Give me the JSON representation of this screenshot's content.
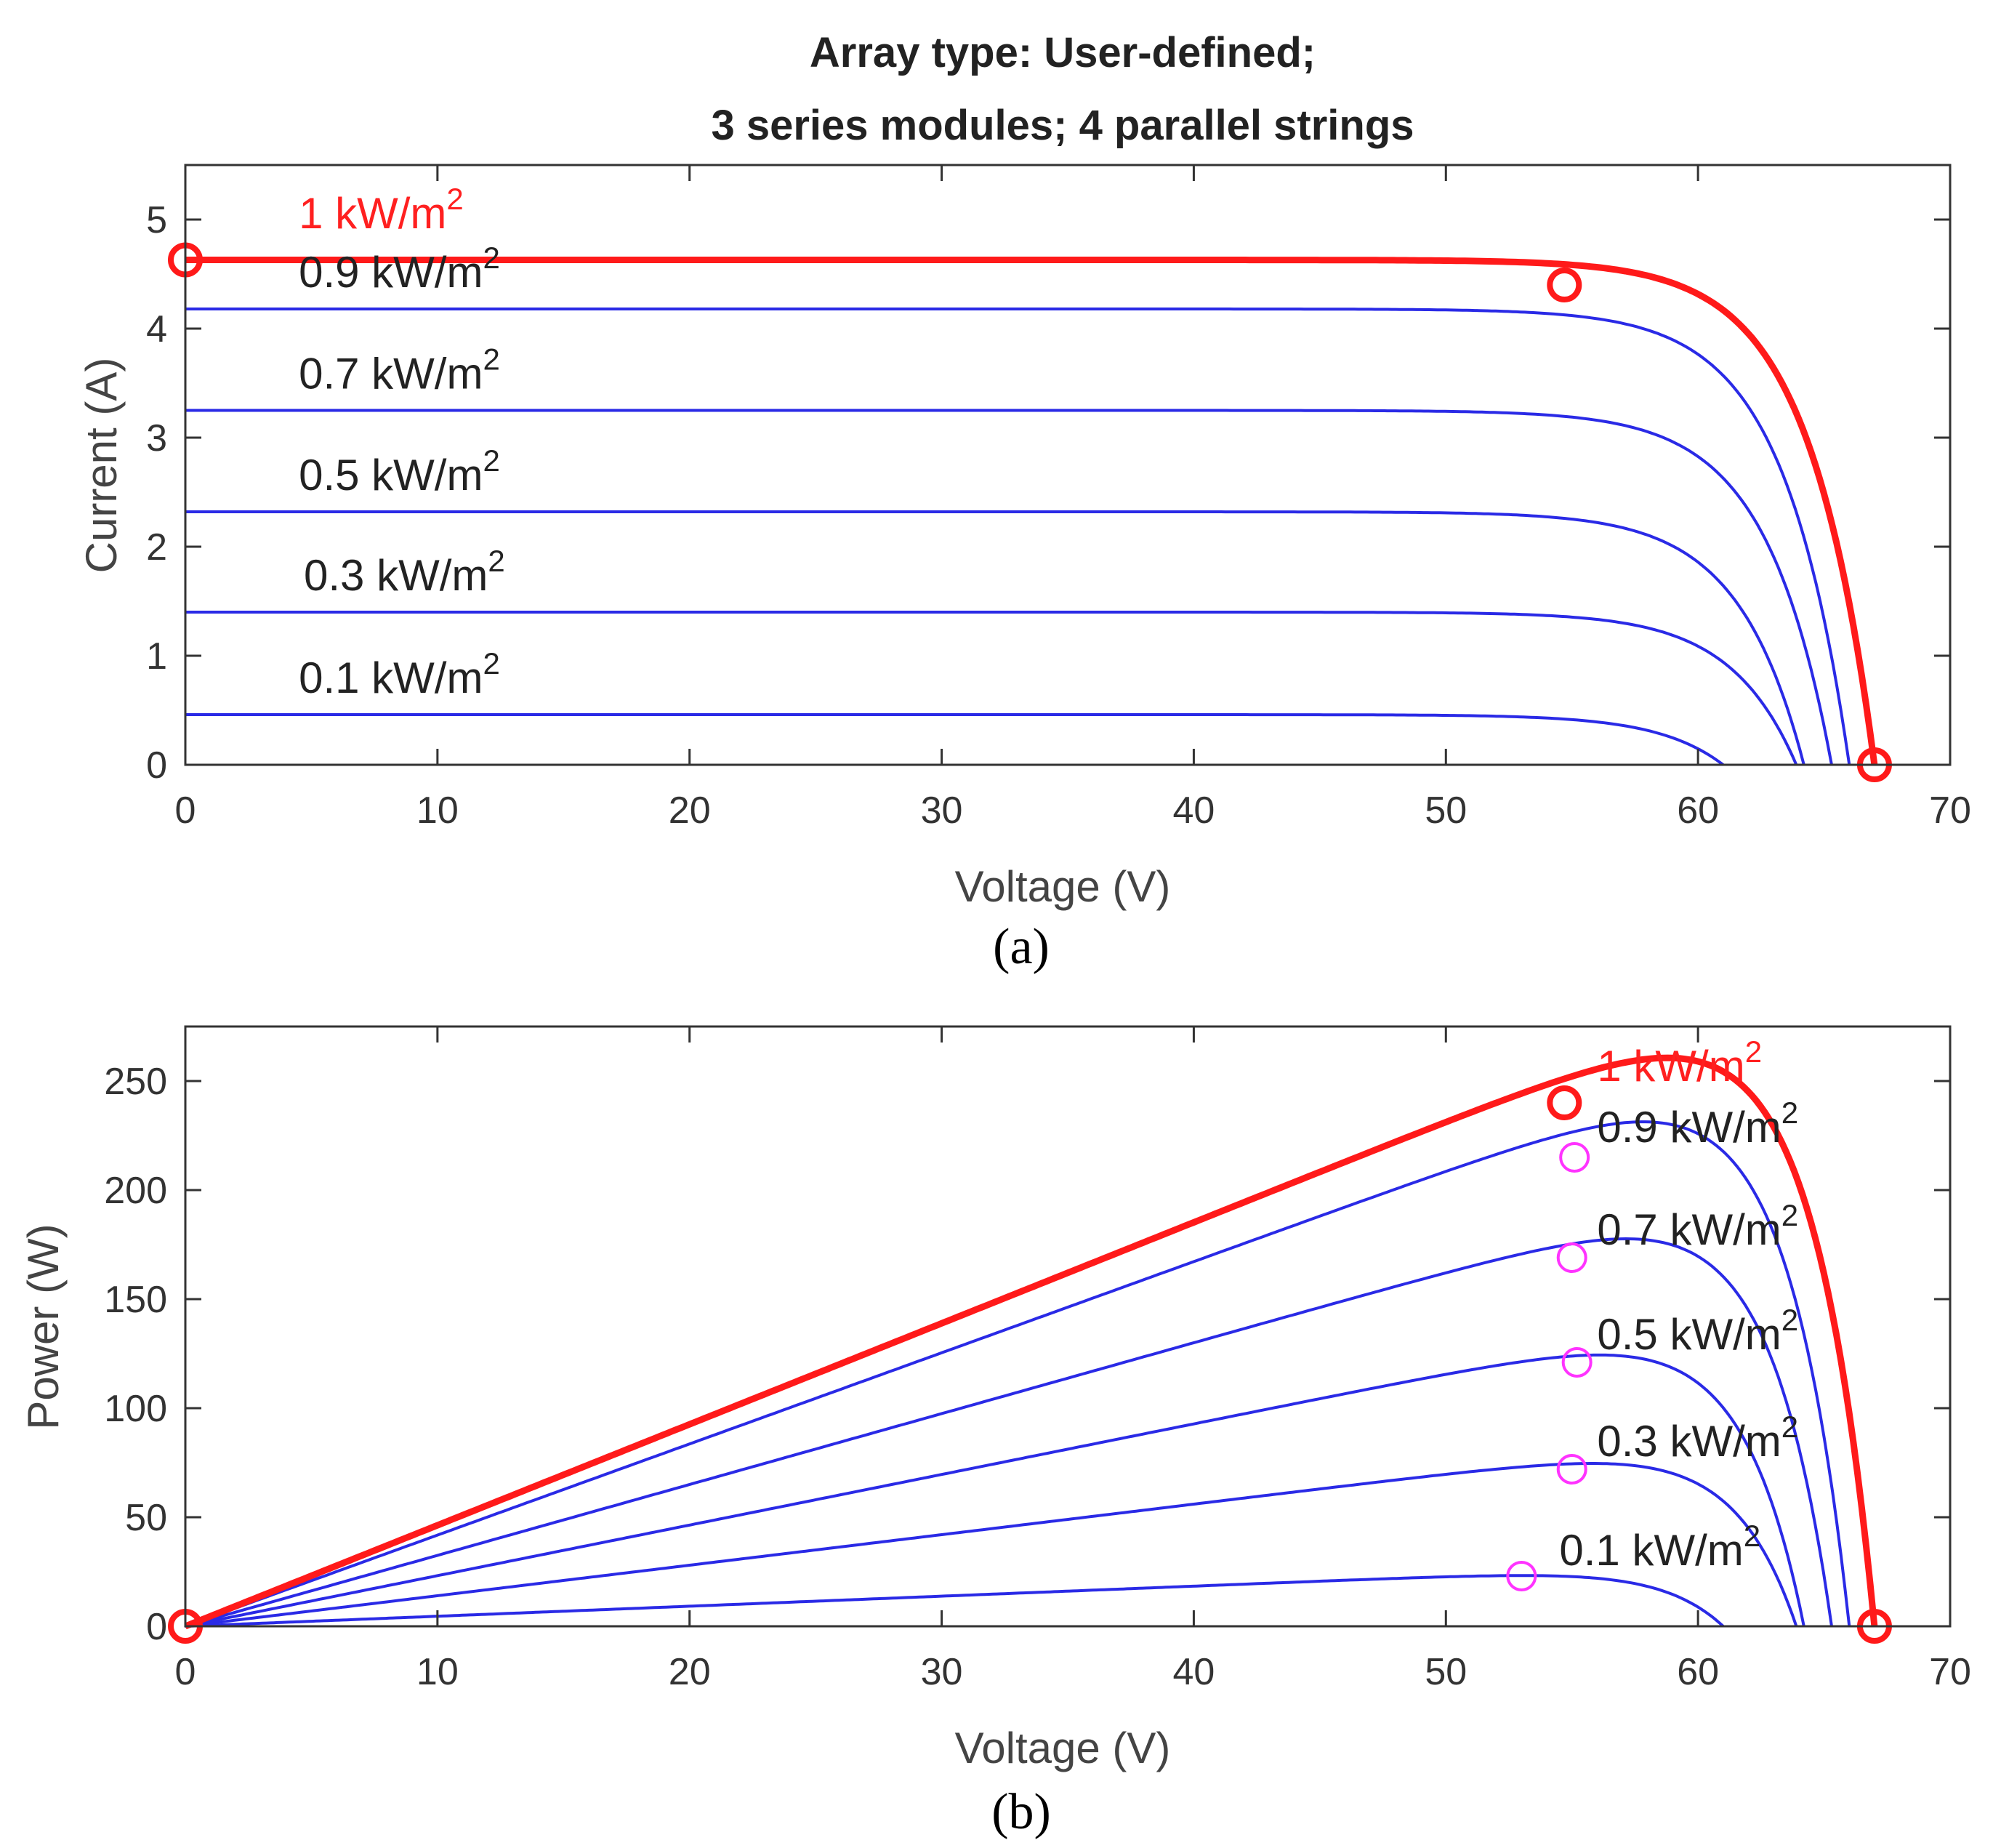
{
  "title": {
    "line1": "Array type: User-defined;",
    "line2": "3 series modules; 4 parallel strings"
  },
  "colors": {
    "highlight": "#ff1a1a",
    "curve": "#2a2ae6",
    "mpp_marker": "#ff33ff",
    "axis": "#333333"
  },
  "chart_data": [
    {
      "id": "iv",
      "type": "line",
      "caption": "(a)",
      "xlabel": "Voltage (V)",
      "ylabel": "Current (A)",
      "xlim": [
        0,
        70
      ],
      "ylim": [
        0,
        5.5
      ],
      "xticks": [
        0,
        10,
        20,
        30,
        40,
        50,
        60,
        70
      ],
      "yticks": [
        0,
        1,
        2,
        3,
        4,
        5
      ],
      "series": [
        {
          "name": "1 kW/m²",
          "label": "1 kW/m",
          "exp": "2",
          "highlight": true,
          "isc": 4.63,
          "voc": 67.0
        },
        {
          "name": "0.9 kW/m²",
          "label": "0.9 kW/m",
          "exp": "2",
          "highlight": false,
          "isc": 4.18,
          "voc": 66.0
        },
        {
          "name": "0.7 kW/m²",
          "label": "0.7 kW/m",
          "exp": "2",
          "highlight": false,
          "isc": 3.25,
          "voc": 65.3
        },
        {
          "name": "0.5 kW/m²",
          "label": "0.5 kW/m",
          "exp": "2",
          "highlight": false,
          "isc": 2.32,
          "voc": 64.2
        },
        {
          "name": "0.3 kW/m²",
          "label": "0.3 kW/m",
          "exp": "2",
          "highlight": false,
          "isc": 1.4,
          "voc": 63.9
        },
        {
          "name": "0.1 kW/m²",
          "label": "0.1 kW/m",
          "exp": "2",
          "highlight": false,
          "isc": 0.46,
          "voc": 61.0
        }
      ],
      "markers": [
        {
          "x": 0,
          "y": 4.63
        },
        {
          "x": 54.7,
          "y": 4.4
        },
        {
          "x": 67.0,
          "y": 0
        }
      ]
    },
    {
      "id": "pv",
      "type": "line",
      "caption": "(b)",
      "xlabel": "Voltage (V)",
      "ylabel": "Power (W)",
      "xlim": [
        0,
        70
      ],
      "ylim": [
        0,
        275
      ],
      "xticks": [
        0,
        10,
        20,
        30,
        40,
        50,
        60,
        70
      ],
      "yticks": [
        0,
        50,
        100,
        150,
        200,
        250
      ],
      "series": [
        {
          "name": "1 kW/m²",
          "label": "1 kW/m",
          "exp": "2",
          "highlight": true,
          "isc": 4.63,
          "voc": 67.0,
          "mpp": [
            54.7,
            240
          ]
        },
        {
          "name": "0.9 kW/m²",
          "label": "0.9 kW/m",
          "exp": "2",
          "highlight": false,
          "isc": 4.18,
          "voc": 66.0,
          "mpp": [
            55.1,
            215
          ]
        },
        {
          "name": "0.7 kW/m²",
          "label": "0.7 kW/m",
          "exp": "2",
          "highlight": false,
          "isc": 3.25,
          "voc": 65.3,
          "mpp": [
            55.0,
            169
          ]
        },
        {
          "name": "0.5 kW/m²",
          "label": "0.5 kW/m",
          "exp": "2",
          "highlight": false,
          "isc": 2.32,
          "voc": 64.2,
          "mpp": [
            55.2,
            121
          ]
        },
        {
          "name": "0.3 kW/m²",
          "label": "0.3 kW/m",
          "exp": "2",
          "highlight": false,
          "isc": 1.4,
          "voc": 63.9,
          "mpp": [
            55.0,
            72
          ]
        },
        {
          "name": "0.1 kW/m²",
          "label": "0.1 kW/m",
          "exp": "2",
          "highlight": false,
          "isc": 0.46,
          "voc": 61.0,
          "mpp": [
            53.0,
            23
          ]
        }
      ],
      "markers": [
        {
          "x": 0,
          "y": 0
        },
        {
          "x": 54.7,
          "y": 240
        },
        {
          "x": 67.0,
          "y": 0
        }
      ]
    }
  ]
}
